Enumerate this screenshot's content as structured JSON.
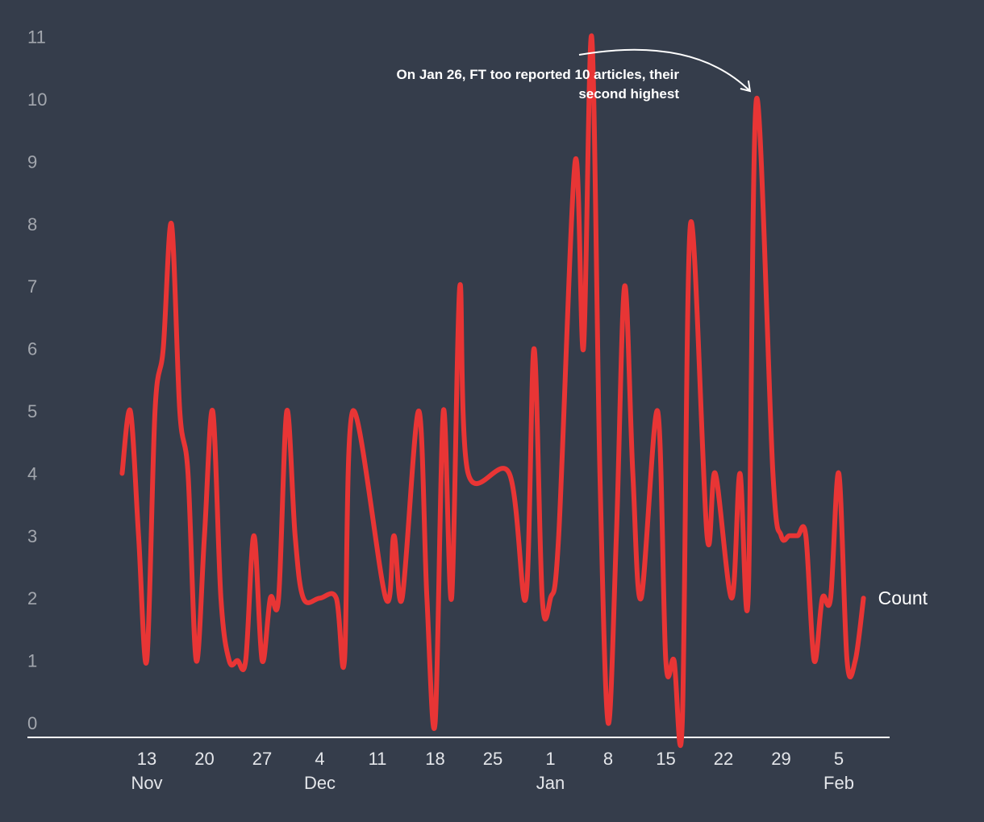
{
  "chart_data": {
    "type": "line",
    "title": "",
    "xlabel": "",
    "ylabel": "",
    "ylim": [
      0,
      11
    ],
    "grid": false,
    "legend": "none",
    "colors": {
      "background": "#353d4b",
      "line": "#e83535",
      "axis": "#ffffff"
    },
    "y_ticks": [
      "0",
      "1",
      "2",
      "3",
      "4",
      "5",
      "6",
      "7",
      "8",
      "9",
      "10",
      "11"
    ],
    "x_ticks": [
      {
        "date": "2023-11-13",
        "label": "13",
        "month": "Nov"
      },
      {
        "date": "2023-11-20",
        "label": "20",
        "month": ""
      },
      {
        "date": "2023-11-27",
        "label": "27",
        "month": ""
      },
      {
        "date": "2023-12-04",
        "label": "4",
        "month": "Dec"
      },
      {
        "date": "2023-12-11",
        "label": "11",
        "month": ""
      },
      {
        "date": "2023-12-18",
        "label": "18",
        "month": ""
      },
      {
        "date": "2023-12-25",
        "label": "25",
        "month": ""
      },
      {
        "date": "2024-01-01",
        "label": "1",
        "month": "Jan"
      },
      {
        "date": "2024-01-08",
        "label": "8",
        "month": ""
      },
      {
        "date": "2024-01-15",
        "label": "15",
        "month": ""
      },
      {
        "date": "2024-01-22",
        "label": "22",
        "month": ""
      },
      {
        "date": "2024-01-29",
        "label": "29",
        "month": ""
      },
      {
        "date": "2024-02-05",
        "label": "5",
        "month": "Feb"
      }
    ],
    "series": [
      {
        "name": "Count",
        "points": [
          [
            "2023-11-10",
            4
          ],
          [
            "2023-11-11",
            5
          ],
          [
            "2023-11-12",
            3
          ],
          [
            "2023-11-13",
            1
          ],
          [
            "2023-11-14",
            5
          ],
          [
            "2023-11-15",
            6
          ],
          [
            "2023-11-16",
            8
          ],
          [
            "2023-11-17",
            5
          ],
          [
            "2023-11-18",
            4
          ],
          [
            "2023-11-19",
            1
          ],
          [
            "2023-11-20",
            3
          ],
          [
            "2023-11-21",
            5
          ],
          [
            "2023-11-22",
            2
          ],
          [
            "2023-11-23",
            1
          ],
          [
            "2023-11-24",
            1
          ],
          [
            "2023-11-25",
            1
          ],
          [
            "2023-11-26",
            3
          ],
          [
            "2023-11-27",
            1
          ],
          [
            "2023-11-28",
            2
          ],
          [
            "2023-11-29",
            2
          ],
          [
            "2023-11-30",
            5
          ],
          [
            "2023-12-01",
            3
          ],
          [
            "2023-12-02",
            2
          ],
          [
            "2023-12-04",
            2
          ],
          [
            "2023-12-06",
            2
          ],
          [
            "2023-12-07",
            1
          ],
          [
            "2023-12-08",
            5
          ],
          [
            "2023-12-12",
            2
          ],
          [
            "2023-12-13",
            3
          ],
          [
            "2023-12-14",
            2
          ],
          [
            "2023-12-16",
            5
          ],
          [
            "2023-12-17",
            2
          ],
          [
            "2023-12-18",
            0
          ],
          [
            "2023-12-19",
            5
          ],
          [
            "2023-12-20",
            2
          ],
          [
            "2023-12-21",
            7
          ],
          [
            "2023-12-22",
            4
          ],
          [
            "2023-12-27",
            4
          ],
          [
            "2023-12-29",
            2
          ],
          [
            "2023-12-30",
            6
          ],
          [
            "2023-12-31",
            2
          ],
          [
            "2024-01-01",
            2
          ],
          [
            "2024-01-02",
            3
          ],
          [
            "2024-01-04",
            9
          ],
          [
            "2024-01-05",
            6
          ],
          [
            "2024-01-06",
            11
          ],
          [
            "2024-01-07",
            4
          ],
          [
            "2024-01-08",
            0
          ],
          [
            "2024-01-09",
            3
          ],
          [
            "2024-01-10",
            7
          ],
          [
            "2024-01-11",
            4
          ],
          [
            "2024-01-12",
            2
          ],
          [
            "2024-01-14",
            5
          ],
          [
            "2024-01-15",
            1
          ],
          [
            "2024-01-16",
            1
          ],
          [
            "2024-01-17",
            0
          ],
          [
            "2024-01-18",
            8
          ],
          [
            "2024-01-20",
            3
          ],
          [
            "2024-01-21",
            4
          ],
          [
            "2024-01-23",
            2
          ],
          [
            "2024-01-24",
            4
          ],
          [
            "2024-01-25",
            2
          ],
          [
            "2024-01-26",
            10
          ],
          [
            "2024-01-28",
            4
          ],
          [
            "2024-01-29",
            3
          ],
          [
            "2024-01-30",
            3
          ],
          [
            "2024-01-31",
            3
          ],
          [
            "2024-02-01",
            3
          ],
          [
            "2024-02-02",
            1
          ],
          [
            "2024-02-03",
            2
          ],
          [
            "2024-02-04",
            2
          ],
          [
            "2024-02-05",
            4
          ],
          [
            "2024-02-06",
            1
          ],
          [
            "2024-02-07",
            1
          ],
          [
            "2024-02-08",
            2
          ]
        ]
      }
    ],
    "annotations": [
      {
        "text_lines": [
          "On Jan 26, FT too reported 10 articles, their",
          "second highest"
        ],
        "target_date": "2024-01-26",
        "target_value": 10
      }
    ]
  }
}
